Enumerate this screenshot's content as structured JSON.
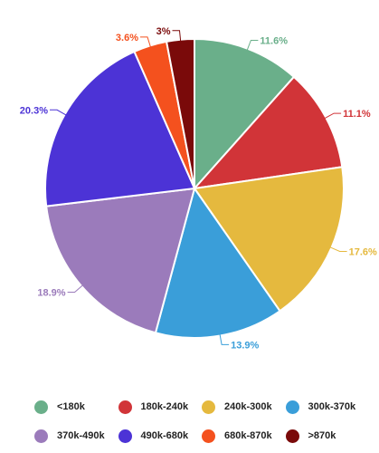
{
  "chart_data": {
    "type": "pie",
    "slices": [
      {
        "name": "<180k",
        "value": 11.6,
        "label": "11.6%",
        "color": "#6aaf8a"
      },
      {
        "name": "180k-240k",
        "value": 11.1,
        "label": "11.1%",
        "color": "#d13438"
      },
      {
        "name": "240k-300k",
        "value": 17.6,
        "label": "17.6%",
        "color": "#e5b93e"
      },
      {
        "name": "300k-370k",
        "value": 13.9,
        "label": "13.9%",
        "color": "#3a9ed9"
      },
      {
        "name": "370k-490k",
        "value": 18.9,
        "label": "18.9%",
        "color": "#9b7bbb"
      },
      {
        "name": "490k-680k",
        "value": 20.3,
        "label": "20.3%",
        "color": "#4c33d6"
      },
      {
        "name": "680k-870k",
        "value": 3.6,
        "label": "3.6%",
        "color": "#f4511e"
      },
      {
        "name": ">870k",
        "value": 3.0,
        "label": "3%",
        "color": "#7a0a0a"
      }
    ],
    "legend_position": "bottom"
  }
}
